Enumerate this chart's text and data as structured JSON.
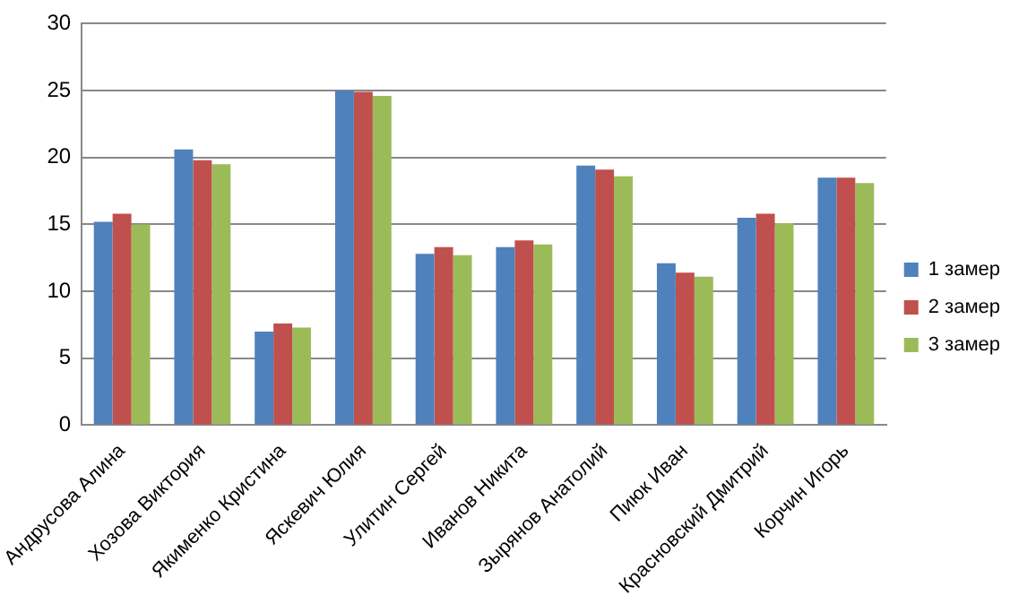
{
  "chart_data": {
    "type": "bar",
    "categories": [
      "Андрусова Алина",
      "Хозова Виктория",
      "Якименко Кристина",
      "Яскевич Юлия",
      "Улитин Сергей",
      "Иванов Никита",
      "Зырянов Анатолий",
      "Пиюк Иван",
      "Красновский Дмитрий",
      "Корчин Игорь"
    ],
    "series": [
      {
        "name": "1 замер",
        "color": "#4f81bd",
        "values": [
          15.2,
          20.6,
          7.0,
          25.0,
          12.8,
          13.3,
          19.4,
          12.1,
          15.5,
          18.5
        ]
      },
      {
        "name": "2 замер",
        "color": "#c0504d",
        "values": [
          15.8,
          19.8,
          7.6,
          24.9,
          13.3,
          13.8,
          19.1,
          11.4,
          15.8,
          18.5
        ]
      },
      {
        "name": "3 замер",
        "color": "#9bbb59",
        "values": [
          15.0,
          19.5,
          7.3,
          24.6,
          12.7,
          13.5,
          18.6,
          11.1,
          15.1,
          18.1
        ]
      }
    ],
    "ylim": [
      0,
      30
    ],
    "yticks": [
      0,
      5,
      10,
      15,
      20,
      25,
      30
    ],
    "grid": "y",
    "legend": "right"
  }
}
